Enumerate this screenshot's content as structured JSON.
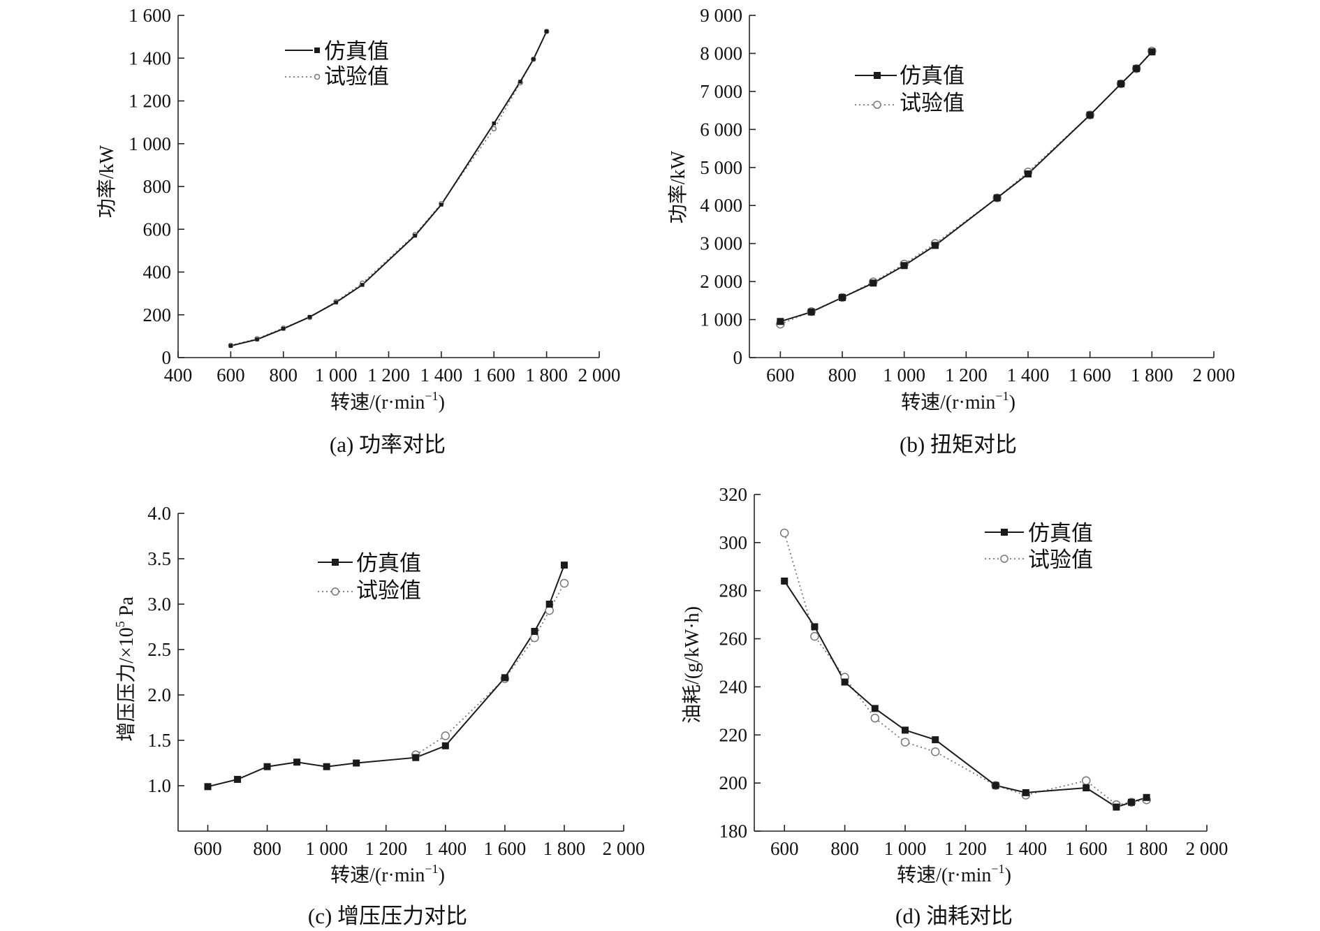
{
  "colors": {
    "sim": "#1a1a1a",
    "exp": "#777777",
    "axis": "#222222"
  },
  "chart_data": [
    {
      "id": "a",
      "type": "line",
      "caption": "(a) 功率对比",
      "xlabel": "转速/(r·min",
      "xlabel_sup": "−1",
      "xlabel_end": ")",
      "ylabel": "功率/kW",
      "xlim": [
        400,
        2000
      ],
      "ylim": [
        0,
        1600
      ],
      "xticks": [
        400,
        600,
        800,
        1000,
        1200,
        1400,
        1600,
        1800,
        2000
      ],
      "xtick_labels": [
        "400",
        "600",
        "800",
        "1 000",
        "1 200",
        "1 400",
        "1 600",
        "1 800",
        "2 000"
      ],
      "yticks": [
        0,
        200,
        400,
        600,
        800,
        1000,
        1200,
        1400,
        1600
      ],
      "ytick_labels": [
        "0",
        "200",
        "400",
        "600",
        "800",
        "1 000",
        "1 200",
        "1 400",
        "1 600"
      ],
      "legend_position": "top-left",
      "marker_scale": 0.55,
      "series": [
        {
          "name": "仿真值",
          "style": "solid-square",
          "x": [
            600,
            700,
            800,
            900,
            1000,
            1100,
            1300,
            1400,
            1600,
            1700,
            1750,
            1800
          ],
          "y": [
            55,
            85,
            135,
            190,
            258,
            340,
            570,
            715,
            1095,
            1290,
            1395,
            1525
          ]
        },
        {
          "name": "试验值",
          "style": "dotted-circle",
          "x": [
            600,
            700,
            800,
            900,
            1000,
            1100,
            1300,
            1400,
            1600,
            1700,
            1750,
            1800
          ],
          "y": [
            57,
            88,
            138,
            188,
            262,
            348,
            575,
            720,
            1070,
            1285,
            1395,
            1525
          ]
        }
      ]
    },
    {
      "id": "b",
      "type": "line",
      "caption": "(b) 扭矩对比",
      "xlabel": "转速/(r·min",
      "xlabel_sup": "−1",
      "xlabel_end": ")",
      "ylabel": "功率/kW",
      "xlim": [
        500,
        2000
      ],
      "ylim": [
        0,
        9000
      ],
      "xticks": [
        600,
        800,
        1000,
        1200,
        1400,
        1600,
        1800,
        2000
      ],
      "xtick_labels": [
        "600",
        "800",
        "1 000",
        "1 200",
        "1 400",
        "1 600",
        "1 800",
        "2 000"
      ],
      "yticks": [
        0,
        1000,
        2000,
        3000,
        4000,
        5000,
        6000,
        7000,
        8000,
        9000
      ],
      "ytick_labels": [
        "0",
        "1 000",
        "2 000",
        "3 000",
        "4 000",
        "5 000",
        "6 000",
        "7 000",
        "8 000",
        "9 000"
      ],
      "legend_position": "top-left",
      "marker_scale": 1,
      "series": [
        {
          "name": "仿真值",
          "style": "solid-square",
          "x": [
            600,
            700,
            800,
            900,
            1000,
            1100,
            1300,
            1400,
            1600,
            1700,
            1750,
            1800
          ],
          "y": [
            950,
            1200,
            1580,
            1960,
            2420,
            2950,
            4200,
            4830,
            6380,
            7200,
            7600,
            8040
          ]
        },
        {
          "name": "试验值",
          "style": "dotted-circle",
          "x": [
            600,
            700,
            800,
            900,
            1000,
            1100,
            1300,
            1400,
            1600,
            1700,
            1750,
            1800
          ],
          "y": [
            880,
            1210,
            1580,
            1990,
            2460,
            3000,
            4200,
            4880,
            6380,
            7200,
            7600,
            8060
          ]
        }
      ]
    },
    {
      "id": "c",
      "type": "line",
      "caption": "(c) 增压压力对比",
      "xlabel": "转速/(r·min",
      "xlabel_sup": "−1",
      "xlabel_end": ")",
      "ylabel": "增压压力/×10",
      "ylabel_sup": "5",
      "ylabel_end": " Pa",
      "xlim": [
        500,
        2000
      ],
      "ylim": [
        0.5,
        4.0
      ],
      "xticks": [
        600,
        800,
        1000,
        1200,
        1400,
        1600,
        1800,
        2000
      ],
      "xtick_labels": [
        "600",
        "800",
        "1 000",
        "1 200",
        "1 400",
        "1 600",
        "1 800",
        "2 000"
      ],
      "yticks": [
        1.0,
        1.5,
        2.0,
        2.5,
        3.0,
        3.5,
        4.0
      ],
      "ytick_labels": [
        "1.0",
        "1.5",
        "2.0",
        "2.5",
        "3.0",
        "3.5",
        "4.0"
      ],
      "legend_position": "top-center",
      "marker_scale": 1,
      "series": [
        {
          "name": "仿真值",
          "style": "solid-square",
          "x": [
            600,
            700,
            800,
            900,
            1000,
            1100,
            1300,
            1400,
            1600,
            1700,
            1750,
            1800
          ],
          "y": [
            0.99,
            1.07,
            1.21,
            1.26,
            1.21,
            1.25,
            1.31,
            1.44,
            2.19,
            2.7,
            3.0,
            3.43
          ]
        },
        {
          "name": "试验值",
          "style": "dotted-circle",
          "x": [
            1300,
            1400,
            1600,
            1700,
            1750,
            1800
          ],
          "y": [
            1.34,
            1.55,
            2.18,
            2.63,
            2.93,
            3.23
          ]
        }
      ]
    },
    {
      "id": "d",
      "type": "line",
      "caption": "(d) 油耗对比",
      "xlabel": "转速/(r·min",
      "xlabel_sup": "−1",
      "xlabel_end": ")",
      "ylabel": "油耗/(g/kW·h)",
      "xlim": [
        500,
        2000
      ],
      "ylim": [
        180,
        320
      ],
      "xticks": [
        600,
        800,
        1000,
        1200,
        1400,
        1600,
        1800,
        2000
      ],
      "xtick_labels": [
        "600",
        "800",
        "1 000",
        "1 200",
        "1 400",
        "1 600",
        "1 800",
        "2 000"
      ],
      "yticks": [
        180,
        200,
        220,
        240,
        260,
        280,
        300,
        320
      ],
      "ytick_labels": [
        "180",
        "200",
        "220",
        "240",
        "260",
        "280",
        "300",
        "320"
      ],
      "legend_position": "top-right",
      "marker_scale": 1,
      "series": [
        {
          "name": "仿真值",
          "style": "solid-square",
          "x": [
            600,
            700,
            800,
            900,
            1000,
            1100,
            1300,
            1400,
            1600,
            1700,
            1750,
            1800
          ],
          "y": [
            284,
            265,
            242,
            231,
            222,
            218,
            199,
            196,
            198,
            190,
            192,
            194
          ]
        },
        {
          "name": "试验值",
          "style": "dotted-circle",
          "x": [
            600,
            700,
            800,
            900,
            1000,
            1100,
            1300,
            1400,
            1600,
            1700,
            1750,
            1800
          ],
          "y": [
            304,
            261,
            244,
            227,
            217,
            213,
            199,
            195,
            201,
            191,
            192,
            193
          ]
        }
      ]
    }
  ]
}
